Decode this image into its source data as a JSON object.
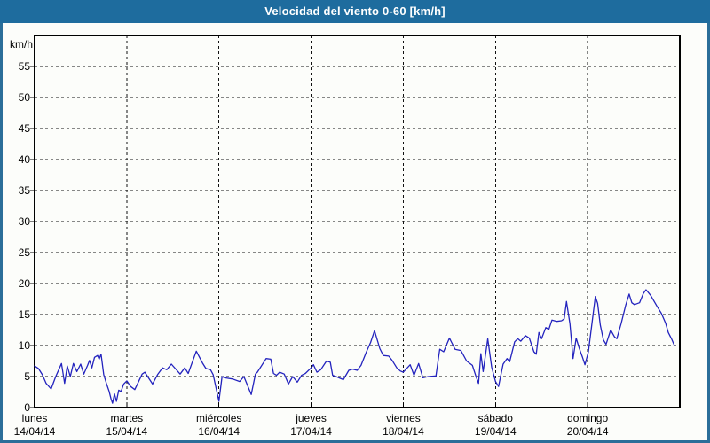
{
  "title": "Velocidad del viento 0-60 [km/h]",
  "colors": {
    "titlebar_bg": "#1e6c9e",
    "frame_border": "#2b6e99",
    "page_bg": "#fcfdfa",
    "axis": "#000000",
    "grid": "#111111",
    "line": "#2323be"
  },
  "y_axis": {
    "unit": "km/h",
    "min": 0,
    "max": 60,
    "step": 5,
    "tick_labels": [
      "0",
      "5",
      "10",
      "15",
      "20",
      "25",
      "30",
      "35",
      "40",
      "45",
      "50",
      "55"
    ]
  },
  "x_axis": {
    "days": [
      {
        "name": "lunes",
        "date": "14/04/14"
      },
      {
        "name": "martes",
        "date": "15/04/14"
      },
      {
        "name": "miércoles",
        "date": "16/04/14"
      },
      {
        "name": "jueves",
        "date": "17/04/14"
      },
      {
        "name": "viernes",
        "date": "18/04/14"
      },
      {
        "name": "sábado",
        "date": "19/04/14"
      },
      {
        "name": "domingo",
        "date": "20/04/14"
      }
    ]
  },
  "chart_data": {
    "type": "line",
    "title": "Velocidad del viento 0-60 [km/h]",
    "ylabel": "km/h",
    "ylim": [
      0,
      60
    ],
    "grid": "dashed",
    "x_range_hours": [
      0,
      168
    ],
    "x_categories": [
      "lunes 14/04/14",
      "martes 15/04/14",
      "miércoles 16/04/14",
      "jueves 17/04/14",
      "viernes 18/04/14",
      "sábado 19/04/14",
      "domingo 20/04/14"
    ],
    "series": [
      {
        "name": "Velocidad del viento",
        "color": "#2323be",
        "points": [
          [
            0,
            6.7
          ],
          [
            1,
            6.3
          ],
          [
            2,
            5.3
          ],
          [
            3,
            3.9
          ],
          [
            4.3,
            3.0
          ],
          [
            5.5,
            5.0
          ],
          [
            7,
            7.1
          ],
          [
            7.8,
            3.9
          ],
          [
            8.5,
            6.7
          ],
          [
            9.3,
            5.0
          ],
          [
            10.1,
            7.1
          ],
          [
            11,
            5.8
          ],
          [
            12,
            7.0
          ],
          [
            12.8,
            5.4
          ],
          [
            13.8,
            6.8
          ],
          [
            14.3,
            7.6
          ],
          [
            14.9,
            6.4
          ],
          [
            15.6,
            8.1
          ],
          [
            16.4,
            8.4
          ],
          [
            16.8,
            7.8
          ],
          [
            17.3,
            8.6
          ],
          [
            18,
            5.3
          ],
          [
            18.7,
            3.9
          ],
          [
            19.4,
            2.6
          ],
          [
            19.9,
            1.4
          ],
          [
            20.3,
            0.7
          ],
          [
            20.8,
            2.2
          ],
          [
            21.3,
            1.0
          ],
          [
            21.9,
            2.8
          ],
          [
            22.5,
            2.6
          ],
          [
            23.2,
            3.8
          ],
          [
            24,
            4.3
          ],
          [
            25,
            3.4
          ],
          [
            26.1,
            2.9
          ],
          [
            28,
            5.4
          ],
          [
            28.7,
            5.7
          ],
          [
            30.7,
            3.8
          ],
          [
            32,
            5.3
          ],
          [
            33.3,
            6.4
          ],
          [
            34.4,
            6.1
          ],
          [
            35.6,
            7.0
          ],
          [
            37.9,
            5.4
          ],
          [
            39.1,
            6.4
          ],
          [
            40,
            5.5
          ],
          [
            42.1,
            9.1
          ],
          [
            43.7,
            7.2
          ],
          [
            44.6,
            6.3
          ],
          [
            45.8,
            6.1
          ],
          [
            46.5,
            5.3
          ],
          [
            48,
            1.0
          ],
          [
            48.8,
            5.0
          ],
          [
            49.5,
            4.8
          ],
          [
            51.6,
            4.6
          ],
          [
            53.4,
            4.2
          ],
          [
            54.5,
            5.0
          ],
          [
            56.4,
            2.1
          ],
          [
            57.5,
            5.4
          ],
          [
            58,
            5.7
          ],
          [
            60.3,
            7.9
          ],
          [
            61.5,
            7.8
          ],
          [
            62.2,
            5.5
          ],
          [
            63,
            5.2
          ],
          [
            63.8,
            5.7
          ],
          [
            65,
            5.4
          ],
          [
            66.1,
            3.8
          ],
          [
            67.2,
            5.0
          ],
          [
            68.4,
            4.1
          ],
          [
            69.5,
            5.2
          ],
          [
            70.5,
            5.5
          ],
          [
            72,
            6.4
          ],
          [
            72.6,
            6.9
          ],
          [
            73.5,
            5.7
          ],
          [
            74.5,
            6.1
          ],
          [
            76,
            7.5
          ],
          [
            77,
            7.3
          ],
          [
            77.6,
            5.2
          ],
          [
            78.5,
            5.0
          ],
          [
            80.4,
            4.5
          ],
          [
            81.8,
            6.0
          ],
          [
            82.8,
            6.2
          ],
          [
            84,
            6.0
          ],
          [
            85,
            6.8
          ],
          [
            86.4,
            9.0
          ],
          [
            87.5,
            10.5
          ],
          [
            88.5,
            12.4
          ],
          [
            89.9,
            9.5
          ],
          [
            90.8,
            8.4
          ],
          [
            92.2,
            8.3
          ],
          [
            93.1,
            7.6
          ],
          [
            94.3,
            6.4
          ],
          [
            95.2,
            5.9
          ],
          [
            96,
            5.7
          ],
          [
            97.8,
            6.9
          ],
          [
            98.8,
            5.2
          ],
          [
            100,
            7.1
          ],
          [
            101.1,
            4.8
          ],
          [
            102.5,
            5.0
          ],
          [
            104.5,
            5.1
          ],
          [
            105.5,
            9.4
          ],
          [
            106.5,
            9.0
          ],
          [
            108,
            11.2
          ],
          [
            109.5,
            9.4
          ],
          [
            111,
            9.2
          ],
          [
            112.5,
            7.5
          ],
          [
            114,
            6.8
          ],
          [
            115,
            4.9
          ],
          [
            115.6,
            3.9
          ],
          [
            116.2,
            8.7
          ],
          [
            116.8,
            5.8
          ],
          [
            118,
            11.1
          ],
          [
            119,
            6.5
          ],
          [
            120,
            4.2
          ],
          [
            120.8,
            3.4
          ],
          [
            122,
            7.0
          ],
          [
            123,
            7.9
          ],
          [
            123.7,
            7.4
          ],
          [
            125,
            10.6
          ],
          [
            125.8,
            11.1
          ],
          [
            126.6,
            10.7
          ],
          [
            127.8,
            11.6
          ],
          [
            128.8,
            11.2
          ],
          [
            130,
            9.0
          ],
          [
            130.6,
            8.6
          ],
          [
            131.3,
            12.1
          ],
          [
            132,
            11.1
          ],
          [
            133.1,
            12.9
          ],
          [
            133.9,
            12.6
          ],
          [
            134.7,
            14.1
          ],
          [
            136,
            13.9
          ],
          [
            137.2,
            14.0
          ],
          [
            137.9,
            14.3
          ],
          [
            138.5,
            17.1
          ],
          [
            139.4,
            13.5
          ],
          [
            140.2,
            7.9
          ],
          [
            141,
            11.2
          ],
          [
            141.8,
            9.6
          ],
          [
            142.6,
            8.2
          ],
          [
            143.3,
            6.9
          ],
          [
            144.2,
            9.0
          ],
          [
            145,
            13.0
          ],
          [
            146,
            17.9
          ],
          [
            146.6,
            16.8
          ],
          [
            147.3,
            13.3
          ],
          [
            148.1,
            10.9
          ],
          [
            148.8,
            10.2
          ],
          [
            150,
            12.5
          ],
          [
            151,
            11.4
          ],
          [
            151.6,
            11.1
          ],
          [
            152.7,
            13.5
          ],
          [
            153.9,
            16.5
          ],
          [
            154.8,
            18.3
          ],
          [
            155.5,
            16.9
          ],
          [
            156.2,
            16.6
          ],
          [
            157.5,
            16.9
          ],
          [
            158.5,
            18.4
          ],
          [
            159.2,
            19.0
          ],
          [
            160.4,
            18.1
          ],
          [
            162,
            16.4
          ],
          [
            163.2,
            15.2
          ],
          [
            164.3,
            13.6
          ],
          [
            165,
            12.1
          ],
          [
            165.9,
            11.0
          ],
          [
            166.6,
            10.0
          ]
        ]
      }
    ]
  }
}
